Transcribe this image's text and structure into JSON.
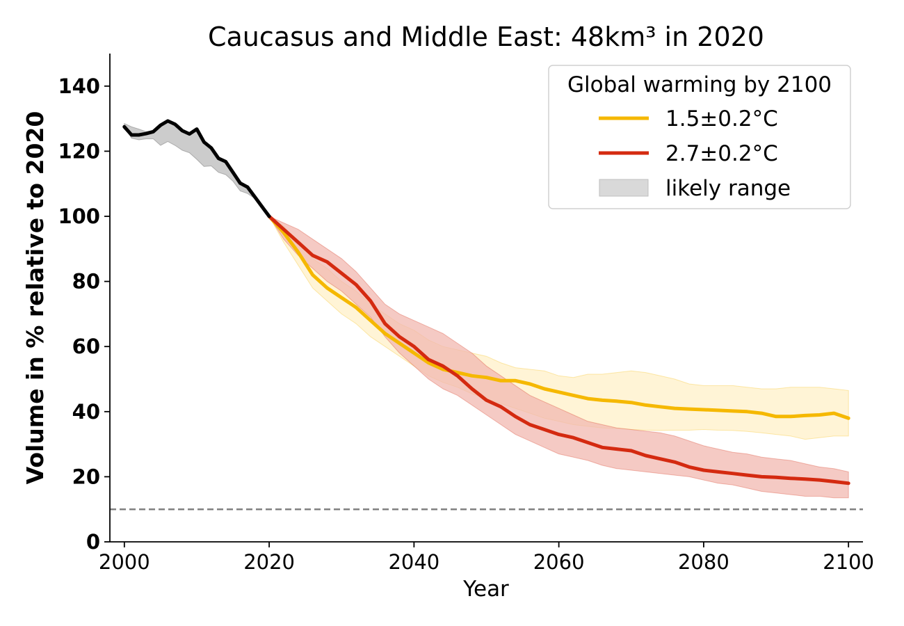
{
  "chart_data": {
    "type": "line",
    "title": "Caucasus and Middle East: 48km³ in 2020",
    "xlabel": "Year",
    "ylabel": "Volume in % relative to 2020",
    "xlim": [
      1998,
      2102
    ],
    "ylim": [
      0,
      150
    ],
    "xticks": [
      2000,
      2020,
      2040,
      2060,
      2080,
      2100
    ],
    "yticks": [
      0,
      20,
      40,
      60,
      80,
      100,
      120,
      140
    ],
    "xtick_labels": [
      "2000",
      "2020",
      "2040",
      "2060",
      "2080",
      "2100"
    ],
    "ytick_labels": [
      "0",
      "20",
      "40",
      "60",
      "80",
      "100",
      "120",
      "140"
    ],
    "grid": false,
    "reference_line": {
      "y": 10,
      "style": "dashed",
      "color": "#808080"
    },
    "legend": {
      "title": "Global warming by 2100",
      "placement": "top-right",
      "entries": [
        "1.5±0.2°C",
        "2.7±0.2°C",
        "likely range"
      ]
    },
    "historical": {
      "color": "#000000",
      "band_color": "#999999",
      "x": [
        2000,
        2001,
        2002,
        2003,
        2004,
        2005,
        2006,
        2007,
        2008,
        2009,
        2010,
        2011,
        2012,
        2013,
        2014,
        2015,
        2016,
        2017,
        2018,
        2019,
        2020
      ],
      "values": [
        127.5,
        125,
        125,
        125.4,
        126,
        128,
        129.3,
        128.3,
        126.3,
        125.3,
        126.8,
        122.8,
        121,
        117.8,
        116.8,
        113.5,
        110.2,
        109,
        106,
        103,
        100
      ],
      "lower": [
        127.5,
        124,
        123.5,
        123.8,
        123.8,
        121.8,
        123,
        121.8,
        120.3,
        119.5,
        117.5,
        115.3,
        115.5,
        113.5,
        112.8,
        110.8,
        107.8,
        107,
        105.5,
        102.5,
        100
      ],
      "upper": [
        128.5,
        127.5,
        126.8,
        126,
        126.3,
        128,
        129.3,
        128.3,
        126.3,
        125.3,
        126.8,
        122.8,
        121,
        117.8,
        116.8,
        113.5,
        110.2,
        109,
        106,
        103,
        100
      ]
    },
    "series": [
      {
        "name": "1.5±0.2°C",
        "color": "#f5b800",
        "band_color": "#fff0c8",
        "x": [
          2020,
          2022,
          2024,
          2026,
          2028,
          2030,
          2032,
          2034,
          2036,
          2038,
          2040,
          2042,
          2044,
          2046,
          2048,
          2050,
          2052,
          2054,
          2056,
          2058,
          2060,
          2062,
          2064,
          2066,
          2068,
          2070,
          2072,
          2074,
          2076,
          2078,
          2080,
          2082,
          2084,
          2086,
          2088,
          2090,
          2092,
          2094,
          2096,
          2098,
          2100
        ],
        "values": [
          100,
          95,
          89,
          82,
          78,
          75,
          72,
          68,
          64,
          61,
          58,
          55,
          53,
          52,
          51,
          50.5,
          49.5,
          49.5,
          48.5,
          47,
          46,
          45,
          44,
          43.5,
          43.2,
          42.8,
          42,
          41.5,
          41,
          40.8,
          40.6,
          40.4,
          40.2,
          40,
          39.5,
          38.5,
          38.5,
          38.8,
          39,
          39.5,
          38
        ],
        "lower": [
          100,
          92,
          85,
          78,
          74,
          70,
          67,
          63,
          60,
          57,
          54,
          51,
          49,
          47.5,
          45.5,
          44,
          42.5,
          41,
          39.5,
          38,
          37,
          36,
          35.5,
          35,
          34.8,
          34.5,
          34.3,
          34.2,
          34.3,
          34.3,
          34.5,
          34.3,
          34.2,
          33.9,
          33.5,
          33,
          32.5,
          31.5,
          32,
          32.5,
          32.5
        ],
        "upper": [
          100,
          97,
          92,
          87,
          84,
          80,
          77,
          73,
          70,
          67,
          65,
          62,
          60,
          59,
          58,
          57,
          55,
          53.5,
          53,
          52.5,
          51,
          50.5,
          51.5,
          51.5,
          52,
          52.5,
          52,
          51,
          50,
          48.5,
          48,
          48,
          48,
          47.5,
          47,
          47,
          47.5,
          47.5,
          47.5,
          47,
          46.5
        ]
      },
      {
        "name": "2.7±0.2°C",
        "color": "#d42a10",
        "band_color": "#f2b8b0",
        "x": [
          2020,
          2022,
          2024,
          2026,
          2028,
          2030,
          2032,
          2034,
          2036,
          2038,
          2040,
          2042,
          2044,
          2046,
          2048,
          2050,
          2052,
          2054,
          2056,
          2058,
          2060,
          2062,
          2064,
          2066,
          2068,
          2070,
          2072,
          2074,
          2076,
          2078,
          2080,
          2082,
          2084,
          2086,
          2088,
          2090,
          2092,
          2094,
          2096,
          2098,
          2100
        ],
        "values": [
          100,
          96,
          92,
          88,
          86,
          82.5,
          79,
          74,
          67,
          63,
          60,
          56,
          54,
          51,
          47,
          43.5,
          41.5,
          38.5,
          36,
          34.5,
          33,
          32,
          30.5,
          29,
          28.5,
          28,
          26.5,
          25.5,
          24.5,
          23,
          22,
          21.5,
          21,
          20.5,
          20,
          19.8,
          19.5,
          19.3,
          19,
          18.5,
          18
        ],
        "lower": [
          100,
          93,
          88,
          84,
          80,
          77,
          73,
          69,
          63,
          58,
          54,
          50,
          47,
          45,
          42,
          39,
          36,
          33,
          31,
          29,
          27,
          26,
          25,
          23.5,
          22.5,
          22,
          21.5,
          21,
          20.5,
          20,
          19,
          18,
          17.5,
          16.5,
          15.5,
          15,
          14.5,
          14,
          14,
          13.5,
          13.5
        ],
        "upper": [
          100,
          98,
          96,
          93,
          90,
          87,
          83,
          78,
          73,
          70,
          68,
          66,
          64,
          61,
          58,
          54,
          51,
          48,
          45,
          43,
          41,
          39,
          37,
          36,
          35,
          34.5,
          34,
          33.5,
          32.5,
          31,
          29.5,
          28.5,
          27.5,
          27,
          26,
          25.5,
          25,
          24,
          23,
          22.5,
          21.5
        ]
      }
    ]
  }
}
